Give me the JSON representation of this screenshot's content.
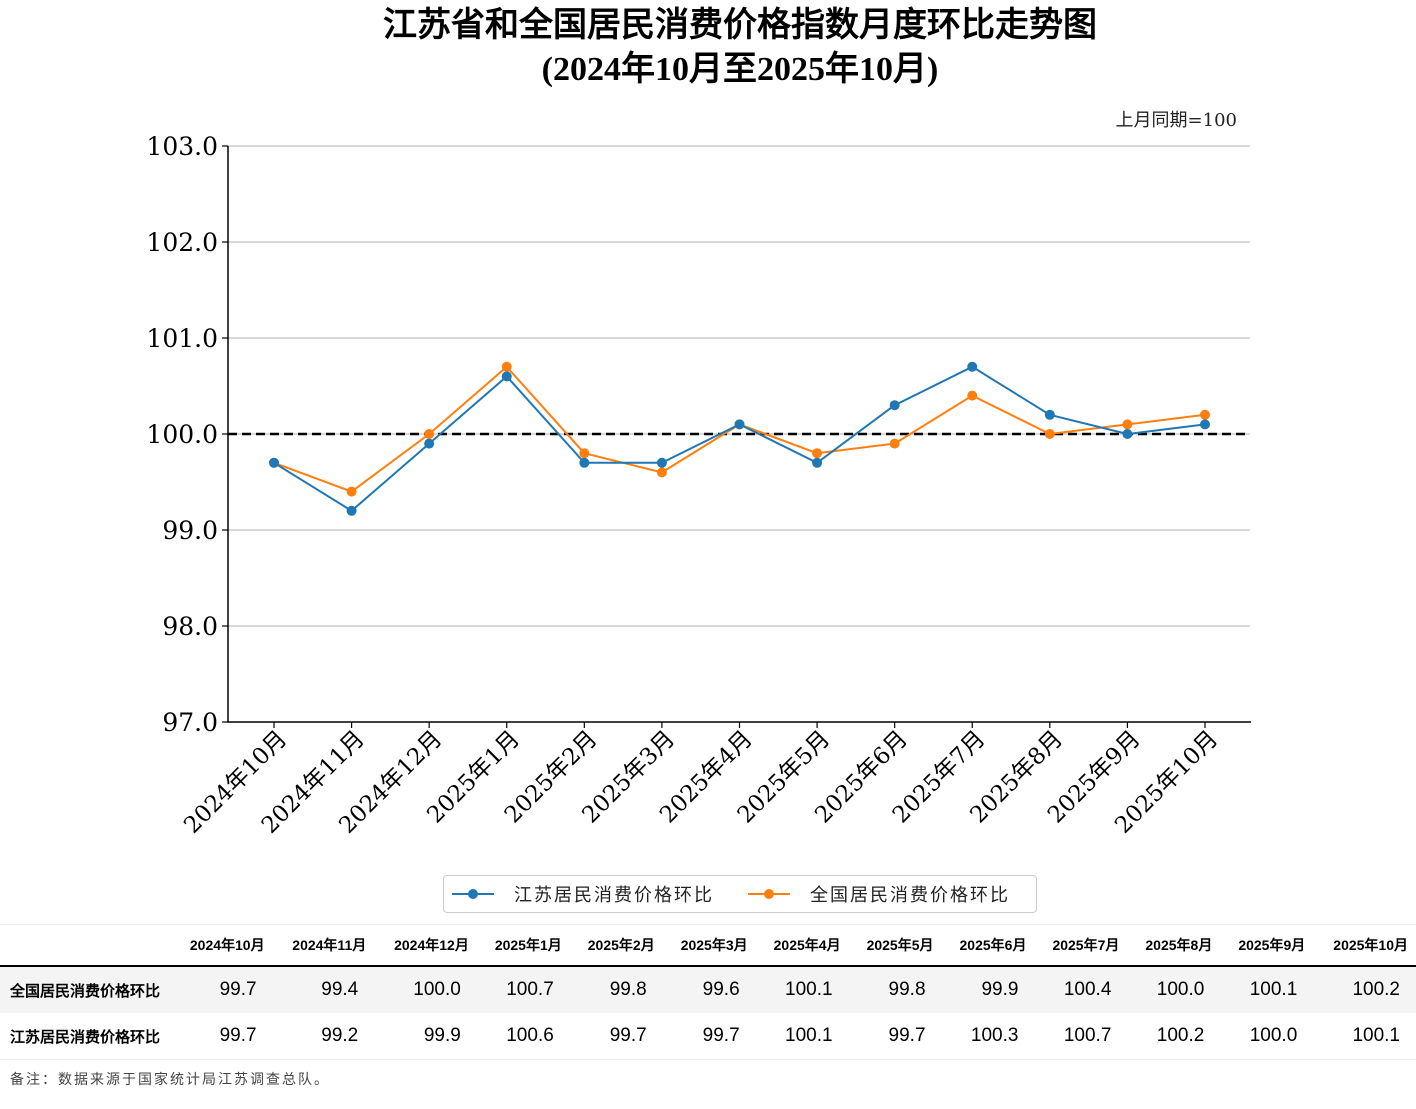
{
  "chart_data": {
    "type": "line",
    "title": "江苏省和全国居民消费价格指数月度环比走势图",
    "subtitle": "(2024年10月至2025年10月)",
    "annotation": "上月同期=100",
    "xlabel": "",
    "ylabel": "",
    "ylim": [
      97.0,
      103.0
    ],
    "yticks": [
      "97.0",
      "98.0",
      "99.0",
      "100.0",
      "101.0",
      "102.0",
      "103.0"
    ],
    "grid": "horizontal",
    "reference_line": 100.0,
    "legend_position": "bottom-center",
    "categories": [
      "2024年10月",
      "2024年11月",
      "2024年12月",
      "2025年1月",
      "2025年2月",
      "2025年3月",
      "2025年4月",
      "2025年5月",
      "2025年6月",
      "2025年7月",
      "2025年8月",
      "2025年9月",
      "2025年10月"
    ],
    "series": [
      {
        "name": "江苏居民消费价格环比",
        "color": "#1f77b4",
        "values": [
          99.7,
          99.2,
          99.9,
          100.6,
          99.7,
          99.7,
          100.1,
          99.7,
          100.3,
          100.7,
          100.2,
          100.0,
          100.1
        ]
      },
      {
        "name": "全国居民消费价格环比",
        "color": "#ff7f0e",
        "values": [
          99.7,
          99.4,
          100.0,
          100.7,
          99.8,
          99.6,
          100.1,
          99.8,
          99.9,
          100.4,
          100.0,
          100.1,
          100.2
        ]
      }
    ]
  },
  "table": {
    "headers": [
      "2024年10月",
      "2024年11月",
      "2024年12月",
      "2025年1月",
      "2025年2月",
      "2025年3月",
      "2025年4月",
      "2025年5月",
      "2025年6月",
      "2025年7月",
      "2025年8月",
      "2025年9月",
      "2025年10月"
    ],
    "rows": [
      {
        "label": "全国居民消费价格环比",
        "values": [
          "99.7",
          "99.4",
          "100.0",
          "100.7",
          "99.8",
          "99.6",
          "100.1",
          "99.8",
          "99.9",
          "100.4",
          "100.0",
          "100.1",
          "100.2"
        ]
      },
      {
        "label": "江苏居民消费价格环比",
        "values": [
          "99.7",
          "99.2",
          "99.9",
          "100.6",
          "99.7",
          "99.7",
          "100.1",
          "99.7",
          "100.3",
          "100.7",
          "100.2",
          "100.0",
          "100.1"
        ]
      }
    ]
  },
  "note": "备注：数据来源于国家统计局江苏调查总队。"
}
